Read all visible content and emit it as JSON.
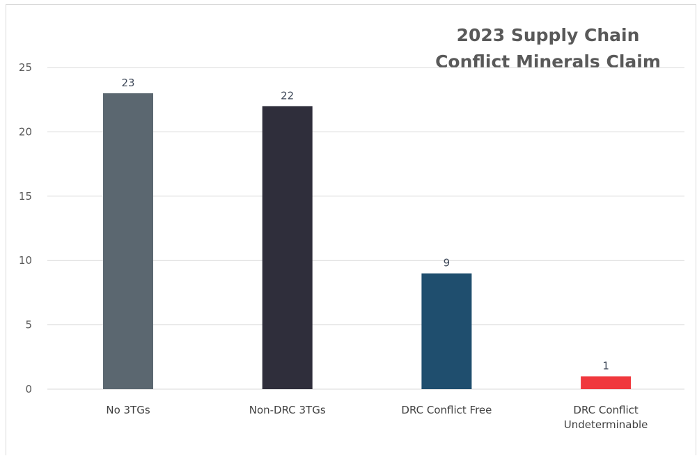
{
  "chart_data": {
    "type": "bar",
    "title": "2023 Supply Chain\nConflict Minerals Claim",
    "categories": [
      [
        "No 3TGs"
      ],
      [
        "Non-DRC 3TGs"
      ],
      [
        "DRC Conflict Free"
      ],
      [
        "DRC Conflict",
        "Undeterminable"
      ]
    ],
    "values": [
      23,
      22,
      9,
      1
    ],
    "colors": [
      "#5b6770",
      "#2f2e3b",
      "#1f4e6e",
      "#f0383d"
    ],
    "data_labels": [
      "23",
      "22",
      "9",
      "1"
    ],
    "yticks": [
      0,
      5,
      10,
      15,
      20,
      25
    ],
    "ylim": [
      0,
      25
    ],
    "xlabel": "",
    "ylabel": "",
    "grid": true,
    "legend": "none"
  }
}
